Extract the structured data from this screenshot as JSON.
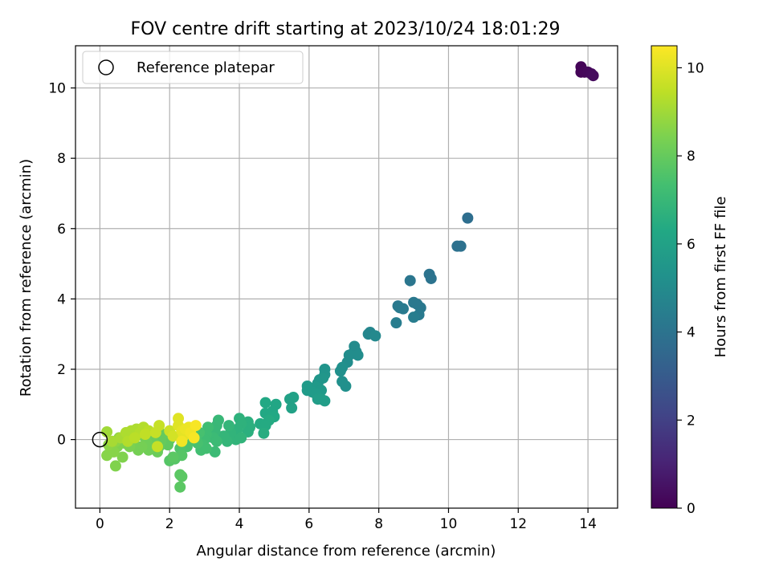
{
  "chart_data": {
    "type": "scatter",
    "title": "FOV centre drift starting at 2023/10/24 18:01:29",
    "xlabel": "Angular distance from reference (arcmin)",
    "ylabel": "Rotation from reference (arcmin)",
    "xlim": [
      -0.7,
      14.85
    ],
    "ylim": [
      -1.95,
      11.2
    ],
    "xticks": [
      0,
      2,
      4,
      6,
      8,
      10,
      12,
      14
    ],
    "yticks": [
      0,
      2,
      4,
      6,
      8,
      10
    ],
    "xtick_labels": [
      "0",
      "2",
      "4",
      "6",
      "8",
      "10",
      "12",
      "14"
    ],
    "ytick_labels": [
      "0",
      "2",
      "4",
      "6",
      "8",
      "10"
    ],
    "grid": true,
    "legend": {
      "placement": "top-left",
      "entries": [
        {
          "label": "Reference platepar",
          "marker": "open-circle"
        }
      ]
    },
    "reference_point": {
      "x": 0,
      "y": 0
    },
    "colorbar": {
      "label": "Hours from first FF file",
      "range": [
        0,
        10.5
      ],
      "ticks": [
        0,
        2,
        4,
        6,
        8,
        10
      ],
      "tick_labels": [
        "0",
        "2",
        "4",
        "6",
        "8",
        "10"
      ],
      "colormap": "viridis"
    },
    "series": [
      {
        "marker": "filled-circle",
        "points": [
          {
            "x": 13.8,
            "y": 10.6,
            "c": 0.1
          },
          {
            "x": 13.85,
            "y": 10.5,
            "c": 0.1
          },
          {
            "x": 13.9,
            "y": 10.45,
            "c": 0.15
          },
          {
            "x": 14.0,
            "y": 10.45,
            "c": 0.2
          },
          {
            "x": 14.1,
            "y": 10.4,
            "c": 0.25
          },
          {
            "x": 14.15,
            "y": 10.35,
            "c": 0.3
          },
          {
            "x": 13.8,
            "y": 10.45,
            "c": 0.1
          },
          {
            "x": 10.55,
            "y": 6.3,
            "c": 3.8
          },
          {
            "x": 10.25,
            "y": 5.5,
            "c": 3.9
          },
          {
            "x": 10.35,
            "y": 5.5,
            "c": 3.9
          },
          {
            "x": 9.45,
            "y": 4.7,
            "c": 4.0
          },
          {
            "x": 9.5,
            "y": 4.58,
            "c": 4.0
          },
          {
            "x": 8.9,
            "y": 4.52,
            "c": 4.1
          },
          {
            "x": 9.0,
            "y": 3.9,
            "c": 4.2
          },
          {
            "x": 9.1,
            "y": 3.85,
            "c": 4.2
          },
          {
            "x": 9.2,
            "y": 3.75,
            "c": 4.2
          },
          {
            "x": 8.55,
            "y": 3.8,
            "c": 4.2
          },
          {
            "x": 8.6,
            "y": 3.75,
            "c": 4.3
          },
          {
            "x": 8.7,
            "y": 3.72,
            "c": 4.3
          },
          {
            "x": 8.5,
            "y": 3.32,
            "c": 4.4
          },
          {
            "x": 9.0,
            "y": 3.48,
            "c": 4.4
          },
          {
            "x": 9.15,
            "y": 3.55,
            "c": 4.3
          },
          {
            "x": 7.7,
            "y": 3.0,
            "c": 4.8
          },
          {
            "x": 7.75,
            "y": 3.05,
            "c": 4.8
          },
          {
            "x": 7.9,
            "y": 2.95,
            "c": 4.9
          },
          {
            "x": 7.3,
            "y": 2.65,
            "c": 5.0
          },
          {
            "x": 7.35,
            "y": 2.5,
            "c": 5.0
          },
          {
            "x": 7.25,
            "y": 2.45,
            "c": 5.0
          },
          {
            "x": 7.15,
            "y": 2.4,
            "c": 5.1
          },
          {
            "x": 7.4,
            "y": 2.4,
            "c": 5.1
          },
          {
            "x": 7.1,
            "y": 2.2,
            "c": 5.1
          },
          {
            "x": 6.95,
            "y": 2.05,
            "c": 5.2
          },
          {
            "x": 6.9,
            "y": 1.95,
            "c": 5.2
          },
          {
            "x": 6.45,
            "y": 2.0,
            "c": 5.4
          },
          {
            "x": 6.45,
            "y": 1.85,
            "c": 5.4
          },
          {
            "x": 6.3,
            "y": 1.7,
            "c": 5.5
          },
          {
            "x": 6.4,
            "y": 1.75,
            "c": 5.5
          },
          {
            "x": 6.25,
            "y": 1.6,
            "c": 5.5
          },
          {
            "x": 6.2,
            "y": 1.5,
            "c": 5.6
          },
          {
            "x": 6.35,
            "y": 1.4,
            "c": 5.6
          },
          {
            "x": 6.95,
            "y": 1.65,
            "c": 5.2
          },
          {
            "x": 7.05,
            "y": 1.52,
            "c": 5.2
          },
          {
            "x": 5.95,
            "y": 1.52,
            "c": 5.7
          },
          {
            "x": 5.95,
            "y": 1.4,
            "c": 5.7
          },
          {
            "x": 6.1,
            "y": 1.35,
            "c": 5.7
          },
          {
            "x": 6.25,
            "y": 1.15,
            "c": 5.8
          },
          {
            "x": 6.35,
            "y": 1.15,
            "c": 5.8
          },
          {
            "x": 6.45,
            "y": 1.1,
            "c": 5.8
          },
          {
            "x": 6.2,
            "y": 1.3,
            "c": 5.7
          },
          {
            "x": 5.55,
            "y": 1.2,
            "c": 6.0
          },
          {
            "x": 5.45,
            "y": 1.15,
            "c": 6.0
          },
          {
            "x": 5.5,
            "y": 0.9,
            "c": 6.0
          },
          {
            "x": 4.75,
            "y": 1.05,
            "c": 6.3
          },
          {
            "x": 5.05,
            "y": 1.0,
            "c": 6.2
          },
          {
            "x": 4.95,
            "y": 0.8,
            "c": 6.2
          },
          {
            "x": 5.0,
            "y": 0.65,
            "c": 6.3
          },
          {
            "x": 4.75,
            "y": 0.75,
            "c": 6.3
          },
          {
            "x": 4.85,
            "y": 0.55,
            "c": 6.4
          },
          {
            "x": 4.6,
            "y": 0.45,
            "c": 6.4
          },
          {
            "x": 4.75,
            "y": 0.4,
            "c": 6.4
          },
          {
            "x": 4.7,
            "y": 0.18,
            "c": 6.5
          },
          {
            "x": 4.25,
            "y": 0.5,
            "c": 6.6
          },
          {
            "x": 4.3,
            "y": 0.35,
            "c": 6.6
          },
          {
            "x": 4.25,
            "y": 0.22,
            "c": 6.6
          },
          {
            "x": 4.0,
            "y": 0.6,
            "c": 6.7
          },
          {
            "x": 4.05,
            "y": 0.45,
            "c": 6.7
          },
          {
            "x": 3.95,
            "y": 0.3,
            "c": 6.7
          },
          {
            "x": 4.05,
            "y": 0.05,
            "c": 6.8
          },
          {
            "x": 3.9,
            "y": 0.0,
            "c": 6.8
          },
          {
            "x": 3.75,
            "y": 0.2,
            "c": 6.8
          },
          {
            "x": 3.7,
            "y": 0.4,
            "c": 6.9
          },
          {
            "x": 3.65,
            "y": -0.05,
            "c": 6.9
          },
          {
            "x": 3.55,
            "y": 0.1,
            "c": 6.9
          },
          {
            "x": 3.4,
            "y": 0.55,
            "c": 7.0
          },
          {
            "x": 3.35,
            "y": 0.4,
            "c": 7.0
          },
          {
            "x": 3.3,
            "y": 0.25,
            "c": 7.0
          },
          {
            "x": 3.25,
            "y": 0.05,
            "c": 7.1
          },
          {
            "x": 3.35,
            "y": -0.05,
            "c": 7.1
          },
          {
            "x": 3.3,
            "y": -0.35,
            "c": 7.1
          },
          {
            "x": 3.1,
            "y": 0.35,
            "c": 7.2
          },
          {
            "x": 3.05,
            "y": 0.15,
            "c": 7.2
          },
          {
            "x": 3.0,
            "y": 0.0,
            "c": 7.2
          },
          {
            "x": 2.95,
            "y": -0.15,
            "c": 7.3
          },
          {
            "x": 3.05,
            "y": -0.25,
            "c": 7.3
          },
          {
            "x": 2.9,
            "y": -0.3,
            "c": 7.3
          },
          {
            "x": 2.85,
            "y": 0.2,
            "c": 7.4
          },
          {
            "x": 2.75,
            "y": 0.05,
            "c": 7.4
          },
          {
            "x": 2.8,
            "y": -0.1,
            "c": 7.4
          },
          {
            "x": 2.6,
            "y": 0.15,
            "c": 7.5
          },
          {
            "x": 2.55,
            "y": -0.05,
            "c": 7.5
          },
          {
            "x": 2.5,
            "y": -0.2,
            "c": 7.5
          },
          {
            "x": 2.35,
            "y": -0.05,
            "c": 7.6
          },
          {
            "x": 2.3,
            "y": -0.25,
            "c": 7.6
          },
          {
            "x": 2.15,
            "y": -0.55,
            "c": 7.7
          },
          {
            "x": 2.35,
            "y": -0.45,
            "c": 7.7
          },
          {
            "x": 2.0,
            "y": -0.6,
            "c": 7.7
          },
          {
            "x": 2.1,
            "y": -0.5,
            "c": 7.8
          },
          {
            "x": 2.35,
            "y": -1.05,
            "c": 7.8
          },
          {
            "x": 2.3,
            "y": -1.0,
            "c": 7.8
          },
          {
            "x": 2.3,
            "y": -1.35,
            "c": 7.8
          },
          {
            "x": 2.05,
            "y": 0.1,
            "c": 7.9
          },
          {
            "x": 2.0,
            "y": 0.0,
            "c": 7.9
          },
          {
            "x": 1.95,
            "y": -0.15,
            "c": 7.9
          },
          {
            "x": 1.8,
            "y": 0.15,
            "c": 8.0
          },
          {
            "x": 1.75,
            "y": -0.05,
            "c": 8.0
          },
          {
            "x": 1.7,
            "y": -0.2,
            "c": 8.0
          },
          {
            "x": 1.65,
            "y": -0.35,
            "c": 8.1
          },
          {
            "x": 1.6,
            "y": -0.15,
            "c": 8.1
          },
          {
            "x": 1.5,
            "y": 0.05,
            "c": 8.1
          },
          {
            "x": 1.4,
            "y": -0.3,
            "c": 8.2
          },
          {
            "x": 1.35,
            "y": -0.1,
            "c": 8.2
          },
          {
            "x": 1.25,
            "y": 0.1,
            "c": 8.2
          },
          {
            "x": 1.2,
            "y": -0.2,
            "c": 8.3
          },
          {
            "x": 1.1,
            "y": -0.3,
            "c": 8.3
          },
          {
            "x": 1.0,
            "y": -0.15,
            "c": 8.3
          },
          {
            "x": 0.95,
            "y": 0.05,
            "c": 8.4
          },
          {
            "x": 0.85,
            "y": -0.2,
            "c": 8.4
          },
          {
            "x": 0.7,
            "y": -0.1,
            "c": 8.4
          },
          {
            "x": 0.65,
            "y": -0.5,
            "c": 8.5
          },
          {
            "x": 0.5,
            "y": -0.2,
            "c": 8.5
          },
          {
            "x": 0.45,
            "y": -0.75,
            "c": 8.5
          },
          {
            "x": 0.4,
            "y": -0.35,
            "c": 8.6
          },
          {
            "x": 0.3,
            "y": -0.25,
            "c": 8.6
          },
          {
            "x": 0.2,
            "y": -0.45,
            "c": 8.6
          },
          {
            "x": 0.25,
            "y": -0.15,
            "c": 8.7
          },
          {
            "x": 0.55,
            "y": 0.05,
            "c": 8.7
          },
          {
            "x": 0.45,
            "y": -0.05,
            "c": 8.7
          },
          {
            "x": 0.2,
            "y": 0.22,
            "c": 9.0
          },
          {
            "x": 0.35,
            "y": -0.05,
            "c": 9.1
          },
          {
            "x": 0.6,
            "y": 0.05,
            "c": 9.1
          },
          {
            "x": 0.75,
            "y": 0.2,
            "c": 9.2
          },
          {
            "x": 0.9,
            "y": 0.25,
            "c": 9.2
          },
          {
            "x": 1.05,
            "y": 0.3,
            "c": 9.2
          },
          {
            "x": 1.15,
            "y": 0.2,
            "c": 9.3
          },
          {
            "x": 1.25,
            "y": 0.35,
            "c": 9.3
          },
          {
            "x": 1.4,
            "y": 0.25,
            "c": 9.4
          },
          {
            "x": 1.0,
            "y": 0.05,
            "c": 9.4
          },
          {
            "x": 0.8,
            "y": -0.05,
            "c": 9.3
          },
          {
            "x": 1.3,
            "y": 0.15,
            "c": 9.5
          },
          {
            "x": 1.7,
            "y": 0.4,
            "c": 9.6
          },
          {
            "x": 1.6,
            "y": 0.2,
            "c": 9.6
          },
          {
            "x": 1.65,
            "y": -0.2,
            "c": 9.6
          },
          {
            "x": 2.0,
            "y": 0.25,
            "c": 9.7
          },
          {
            "x": 2.1,
            "y": 0.1,
            "c": 9.8
          },
          {
            "x": 2.25,
            "y": 0.6,
            "c": 10.0
          },
          {
            "x": 2.25,
            "y": 0.4,
            "c": 10.0
          },
          {
            "x": 2.35,
            "y": 0.25,
            "c": 10.1
          },
          {
            "x": 2.4,
            "y": 0.1,
            "c": 10.1
          },
          {
            "x": 2.45,
            "y": 0.3,
            "c": 10.2
          },
          {
            "x": 2.55,
            "y": 0.35,
            "c": 10.2
          },
          {
            "x": 2.6,
            "y": 0.2,
            "c": 10.3
          },
          {
            "x": 2.35,
            "y": -0.05,
            "c": 10.3
          },
          {
            "x": 2.7,
            "y": 0.05,
            "c": 10.4
          },
          {
            "x": 2.75,
            "y": 0.4,
            "c": 10.4
          }
        ]
      }
    ]
  }
}
